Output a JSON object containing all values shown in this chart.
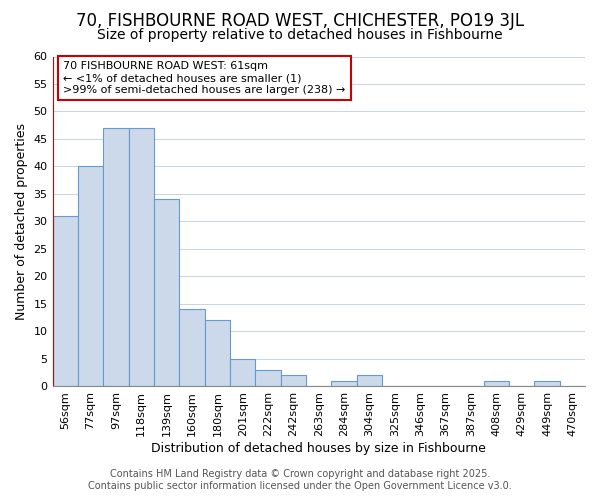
{
  "title": "70, FISHBOURNE ROAD WEST, CHICHESTER, PO19 3JL",
  "subtitle": "Size of property relative to detached houses in Fishbourne",
  "xlabel": "Distribution of detached houses by size in Fishbourne",
  "ylabel": "Number of detached properties",
  "footnote1": "Contains HM Land Registry data © Crown copyright and database right 2025.",
  "footnote2": "Contains public sector information licensed under the Open Government Licence v3.0.",
  "annotation_line1": "70 FISHBOURNE ROAD WEST: 61sqm",
  "annotation_line2": "← <1% of detached houses are smaller (1)",
  "annotation_line3": ">99% of semi-detached houses are larger (238) →",
  "bar_labels": [
    "56sqm",
    "77sqm",
    "97sqm",
    "118sqm",
    "139sqm",
    "160sqm",
    "180sqm",
    "201sqm",
    "222sqm",
    "242sqm",
    "263sqm",
    "284sqm",
    "304sqm",
    "325sqm",
    "346sqm",
    "367sqm",
    "387sqm",
    "408sqm",
    "429sqm",
    "449sqm",
    "470sqm"
  ],
  "bar_values": [
    31,
    40,
    47,
    47,
    34,
    14,
    12,
    5,
    3,
    2,
    0,
    1,
    2,
    0,
    0,
    0,
    0,
    1,
    0,
    1,
    0
  ],
  "bar_color": "#ccd9ea",
  "bar_edge_color": "#6699cc",
  "highlight_color": "#cc0000",
  "ylim": [
    0,
    60
  ],
  "yticks": [
    0,
    5,
    10,
    15,
    20,
    25,
    30,
    35,
    40,
    45,
    50,
    55,
    60
  ],
  "bg_color": "#ffffff",
  "plot_bg_color": "#ffffff",
  "grid_color": "#c8d4e0",
  "title_fontsize": 12,
  "subtitle_fontsize": 10,
  "axis_label_fontsize": 9,
  "tick_fontsize": 8,
  "annotation_fontsize": 8,
  "footnote_fontsize": 7
}
